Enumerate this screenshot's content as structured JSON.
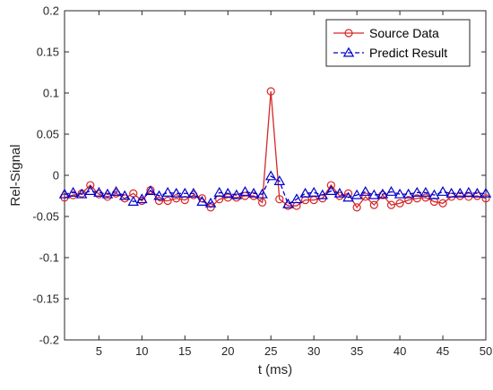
{
  "chart_data": {
    "type": "line",
    "title": "",
    "xlabel": "t (ms)",
    "ylabel": "Rel-Signal",
    "xlim": [
      1,
      50
    ],
    "ylim": [
      -0.2,
      0.2
    ],
    "x_ticks": [
      5,
      10,
      15,
      20,
      25,
      30,
      35,
      40,
      45,
      50
    ],
    "x_tick_labels": [
      "5",
      "10",
      "15",
      "20",
      "25",
      "30",
      "35",
      "40",
      "45",
      "50"
    ],
    "y_ticks": [
      -0.2,
      -0.15,
      -0.1,
      -0.05,
      0,
      0.05,
      0.1,
      0.15,
      0.2
    ],
    "y_tick_labels": [
      "-0.2",
      "-0.15",
      "-0.1",
      "-0.05",
      "0",
      "0.05",
      "0.1",
      "0.15",
      "0.2"
    ],
    "grid": false,
    "legend_position": "top-right",
    "x": [
      1,
      2,
      3,
      4,
      5,
      6,
      7,
      8,
      9,
      10,
      11,
      12,
      13,
      14,
      15,
      16,
      17,
      18,
      19,
      20,
      21,
      22,
      23,
      24,
      25,
      26,
      27,
      28,
      29,
      30,
      31,
      32,
      33,
      34,
      35,
      36,
      37,
      38,
      39,
      40,
      41,
      42,
      43,
      44,
      45,
      46,
      47,
      48,
      49,
      50
    ],
    "series": [
      {
        "name": "Source Data",
        "color": "#d62728",
        "line_style": "solid",
        "marker": "circle",
        "values": [
          -0.027,
          -0.024,
          -0.022,
          -0.012,
          -0.023,
          -0.026,
          -0.022,
          -0.028,
          -0.022,
          -0.031,
          -0.018,
          -0.031,
          -0.031,
          -0.028,
          -0.03,
          -0.024,
          -0.028,
          -0.039,
          -0.029,
          -0.027,
          -0.027,
          -0.025,
          -0.025,
          -0.033,
          0.102,
          -0.029,
          -0.037,
          -0.037,
          -0.03,
          -0.03,
          -0.028,
          -0.012,
          -0.025,
          -0.022,
          -0.039,
          -0.026,
          -0.036,
          -0.024,
          -0.036,
          -0.034,
          -0.03,
          -0.028,
          -0.027,
          -0.032,
          -0.034,
          -0.026,
          -0.025,
          -0.026,
          -0.025,
          -0.028
        ]
      },
      {
        "name": "Predict Result",
        "color": "#0000cd",
        "line_style": "dashed",
        "marker": "triangle",
        "values": [
          -0.023,
          -0.021,
          -0.023,
          -0.019,
          -0.021,
          -0.023,
          -0.02,
          -0.025,
          -0.032,
          -0.029,
          -0.019,
          -0.025,
          -0.021,
          -0.022,
          -0.022,
          -0.022,
          -0.032,
          -0.034,
          -0.021,
          -0.022,
          -0.024,
          -0.02,
          -0.022,
          -0.023,
          -0.001,
          -0.007,
          -0.035,
          -0.029,
          -0.022,
          -0.021,
          -0.024,
          -0.019,
          -0.022,
          -0.027,
          -0.024,
          -0.02,
          -0.024,
          -0.023,
          -0.02,
          -0.023,
          -0.023,
          -0.021,
          -0.021,
          -0.024,
          -0.02,
          -0.022,
          -0.022,
          -0.021,
          -0.022,
          -0.022
        ]
      }
    ]
  }
}
